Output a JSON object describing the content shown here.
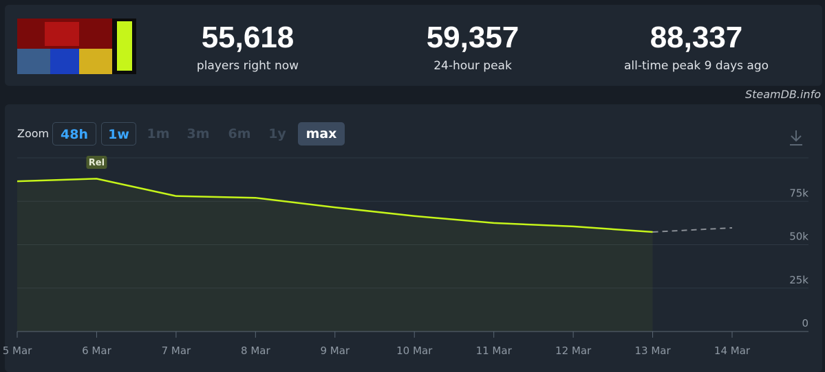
{
  "header": {
    "stats": [
      {
        "value": "55,618",
        "label": "players right now"
      },
      {
        "value": "59,357",
        "label": "24-hour peak"
      },
      {
        "value": "88,337",
        "label": "all-time peak 9 days ago"
      }
    ],
    "watermark": "SteamDB.info"
  },
  "zoom": {
    "label": "Zoom",
    "options": [
      "48h",
      "1w",
      "1m",
      "3m",
      "6m",
      "1y",
      "max"
    ]
  },
  "chart_data": {
    "type": "line",
    "categories": [
      "5 Mar",
      "6 Mar",
      "7 Mar",
      "8 Mar",
      "9 Mar",
      "10 Mar",
      "11 Mar",
      "12 Mar",
      "13 Mar",
      "14 Mar"
    ],
    "series": [
      {
        "color": "#c6f51a",
        "values": [
          86500,
          88000,
          78000,
          77000,
          71500,
          66500,
          62500,
          60500,
          57300,
          null
        ]
      },
      {
        "color": "#8a8f96",
        "dashed": true,
        "values": [
          null,
          null,
          null,
          null,
          null,
          null,
          null,
          null,
          57300,
          59700
        ]
      }
    ],
    "ylim": [
      0,
      100000
    ],
    "yticks": [
      0,
      {
        "value": 25000,
        "label": "25k"
      },
      {
        "value": 50000,
        "label": "50k"
      },
      {
        "value": 75000,
        "label": "75k"
      }
    ],
    "grid": true,
    "annotations": [
      {
        "text": "Rel",
        "x": "6 Mar"
      }
    ]
  }
}
